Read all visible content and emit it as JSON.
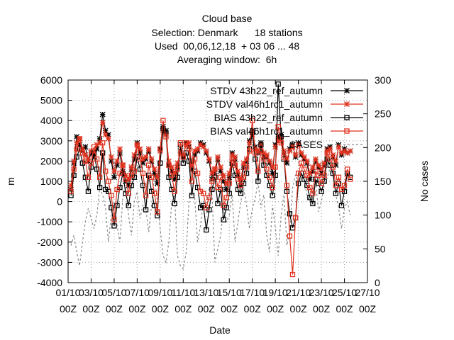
{
  "chart_data": {
    "type": "line",
    "title_lines": [
      "Cloud base",
      "Selection: Denmark      18 stations",
      "Used  00,06,12,18  + 03 06 ... 48",
      "Averaging window:  6h"
    ],
    "xlabel": "Date",
    "ylabel": "m",
    "y2label": "No cases",
    "ylim": [
      -4000,
      6000
    ],
    "y2lim": [
      0,
      300
    ],
    "xlim": [
      0,
      26
    ],
    "grid": true,
    "legend_placement": "top-right",
    "y_ticks": [
      "-4000",
      "-3000",
      "-2000",
      "-1000",
      "0",
      "1000",
      "2000",
      "3000",
      "4000",
      "5000",
      "6000"
    ],
    "y2_ticks": [
      "0",
      "50",
      "100",
      "150",
      "200",
      "250",
      "300"
    ],
    "x_ticks": [
      {
        "day": 0,
        "top": "01/10",
        "bottom": "00Z"
      },
      {
        "day": 2,
        "top": "03/10",
        "bottom": "00Z"
      },
      {
        "day": 4,
        "top": "05/10",
        "bottom": "00Z"
      },
      {
        "day": 6,
        "top": "07/10",
        "bottom": "00Z"
      },
      {
        "day": 8,
        "top": "09/10",
        "bottom": "00Z"
      },
      {
        "day": 10,
        "top": "11/10",
        "bottom": "00Z"
      },
      {
        "day": 12,
        "top": "13/10",
        "bottom": "00Z"
      },
      {
        "day": 14,
        "top": "15/10",
        "bottom": "00Z"
      },
      {
        "day": 16,
        "top": "17/10",
        "bottom": "00Z"
      },
      {
        "day": 18,
        "top": "19/10",
        "bottom": "00Z"
      },
      {
        "day": 20,
        "top": "21/10",
        "bottom": "00Z"
      },
      {
        "day": 22,
        "top": "23/10",
        "bottom": "00Z"
      },
      {
        "day": 24,
        "top": "25/10",
        "bottom": "00Z"
      },
      {
        "day": 26,
        "top": "27/10",
        "bottom": "00Z"
      }
    ],
    "series": [
      {
        "name": "STDV 43h22_ref_autumn",
        "color": "#000000",
        "marker": "star",
        "axis": "y",
        "x": [
          0.25,
          0.5,
          0.75,
          1,
          1.25,
          1.5,
          1.75,
          2,
          2.25,
          2.5,
          2.75,
          3,
          3.25,
          3.5,
          3.75,
          4,
          4.25,
          4.5,
          4.75,
          5,
          5.25,
          5.5,
          5.75,
          6,
          6.25,
          6.5,
          6.75,
          7,
          7.25,
          7.5,
          7.75,
          8,
          8.25,
          8.5,
          8.75,
          9,
          9.25,
          9.5,
          9.75,
          10,
          10.25,
          10.5,
          10.75,
          11,
          11.25,
          11.5,
          11.75,
          12,
          12.25,
          12.5,
          12.75,
          13,
          13.25,
          13.5,
          13.75,
          14,
          14.25,
          14.5,
          14.75,
          15,
          15.25,
          15.5,
          15.75,
          16,
          16.25,
          16.5,
          16.75,
          17,
          17.25,
          17.5,
          17.75,
          18,
          18.25,
          18.5,
          18.75,
          19,
          19.25,
          19.5,
          19.75,
          20,
          20.25,
          20.5,
          20.75,
          21,
          21.25,
          21.5,
          21.75,
          22,
          22.25,
          22.5,
          22.75,
          23,
          23.25,
          23.5,
          23.75,
          24,
          24.25,
          24.5
        ],
        "values": [
          600,
          1900,
          3200,
          2800,
          2500,
          2700,
          2000,
          2400,
          2200,
          2600,
          3100,
          4300,
          3500,
          3300,
          2000,
          1200,
          1800,
          2400,
          1500,
          1000,
          800,
          1600,
          2100,
          2900,
          2400,
          1900,
          2100,
          2500,
          2000,
          1400,
          900,
          2600,
          3700,
          3500,
          1800,
          1500,
          1100,
          1700,
          2500,
          2200,
          2900,
          2700,
          1600,
          2300,
          2500,
          2900,
          2800,
          2400,
          2000,
          1100,
          1400,
          2100,
          1500,
          1000,
          600,
          1200,
          2400,
          2100,
          1300,
          800,
          1700,
          2000,
          3000,
          3500,
          2700,
          2400,
          2900,
          2200,
          2200,
          1900,
          1400,
          2800,
          3200,
          3300,
          2400,
          1900,
          2600,
          2800,
          2200,
          2900,
          2300,
          2100,
          1900,
          1100,
          1500,
          2000,
          1700,
          1400,
          1800,
          2600,
          2700,
          2200,
          1800,
          2800,
          2300,
          2600,
          2400,
          2500
        ]
      },
      {
        "name": "STDV val46h1rc1_autumn",
        "color": "#e0321e",
        "marker": "star",
        "axis": "y",
        "x": [
          0.25,
          0.5,
          0.75,
          1,
          1.25,
          1.5,
          1.75,
          2,
          2.25,
          2.5,
          2.75,
          3,
          3.25,
          3.5,
          3.75,
          4,
          4.25,
          4.5,
          4.75,
          5,
          5.25,
          5.5,
          5.75,
          6,
          6.25,
          6.5,
          6.75,
          7,
          7.25,
          7.5,
          7.75,
          8,
          8.25,
          8.5,
          8.75,
          9,
          9.25,
          9.5,
          9.75,
          10,
          10.25,
          10.5,
          10.75,
          11,
          11.25,
          11.5,
          11.75,
          12,
          12.25,
          12.5,
          12.75,
          13,
          13.25,
          13.5,
          13.75,
          14,
          14.25,
          14.5,
          14.75,
          15,
          15.25,
          15.5,
          15.75,
          16,
          16.25,
          16.5,
          16.75,
          17,
          17.25,
          17.5,
          17.75,
          18,
          18.25,
          18.5,
          18.75,
          19,
          19.25,
          19.5,
          19.75,
          20,
          20.25,
          20.5,
          20.75,
          21,
          21.25,
          21.5,
          21.75,
          22,
          22.25,
          22.5,
          22.75,
          23,
          23.25,
          23.5,
          23.75,
          24,
          24.25,
          24.5
        ],
        "values": [
          800,
          2000,
          2900,
          3100,
          2600,
          2300,
          2100,
          2500,
          2400,
          2800,
          2900,
          3900,
          3300,
          3100,
          2200,
          1500,
          2000,
          2600,
          1800,
          1300,
          1100,
          1700,
          2300,
          2800,
          2600,
          2100,
          2200,
          2600,
          2100,
          1600,
          1200,
          2500,
          3500,
          3300,
          2000,
          1700,
          1400,
          1900,
          2400,
          2300,
          2800,
          2900,
          1800,
          2500,
          2600,
          2800,
          2700,
          2500,
          2100,
          1400,
          1600,
          2200,
          1700,
          1300,
          900,
          1400,
          2300,
          2200,
          1500,
          1100,
          1900,
          2100,
          2900,
          3300,
          2600,
          2500,
          2800,
          2400,
          2300,
          2000,
          1700,
          2700,
          3000,
          3100,
          2500,
          2100,
          2500,
          2700,
          2300,
          2800,
          2400,
          2200,
          2000,
          1400,
          1700,
          2100,
          1800,
          1600,
          1900,
          2500,
          2600,
          2300,
          2000,
          2700,
          2400,
          2500,
          2400,
          2500
        ]
      },
      {
        "name": "BIAS 43h22_ref_autumn",
        "color": "#000000",
        "marker": "square",
        "axis": "y",
        "x": [
          0.25,
          0.5,
          0.75,
          1,
          1.25,
          1.5,
          1.75,
          2,
          2.25,
          2.5,
          2.75,
          3,
          3.25,
          3.5,
          3.75,
          4,
          4.25,
          4.5,
          4.75,
          5,
          5.25,
          5.5,
          5.75,
          6,
          6.25,
          6.5,
          6.75,
          7,
          7.25,
          7.5,
          7.75,
          8,
          8.25,
          8.5,
          8.75,
          9,
          9.25,
          9.5,
          9.75,
          10,
          10.25,
          10.5,
          10.75,
          11,
          11.25,
          11.5,
          11.75,
          12,
          12.25,
          12.5,
          12.75,
          13,
          13.25,
          13.5,
          13.75,
          14,
          14.25,
          14.5,
          14.75,
          15,
          15.25,
          15.5,
          15.75,
          16,
          16.25,
          16.5,
          16.75,
          17,
          17.25,
          17.5,
          17.75,
          18,
          18.25,
          18.5,
          18.75,
          19,
          19.25,
          19.5,
          19.75,
          20,
          20.25,
          20.5,
          20.75,
          21,
          21.25,
          21.5,
          21.75,
          22,
          22.25,
          22.5,
          22.75,
          23,
          23.25,
          23.5,
          23.75,
          24,
          24.25,
          24.5
        ],
        "values": [
          300,
          1300,
          2200,
          2600,
          1900,
          1200,
          500,
          1700,
          2400,
          1600,
          700,
          2400,
          600,
          500,
          -300,
          -1200,
          -200,
          700,
          1400,
          400,
          -200,
          800,
          1200,
          2200,
          1600,
          800,
          -400,
          1300,
          500,
          -200,
          -700,
          1900,
          3600,
          3400,
          1200,
          600,
          -100,
          1200,
          2800,
          1900,
          2400,
          2000,
          300,
          1500,
          700,
          -300,
          -200,
          -1400,
          -400,
          600,
          1200,
          -100,
          600,
          -900,
          -300,
          400,
          1900,
          1300,
          600,
          400,
          900,
          1400,
          2600,
          3400,
          2100,
          1000,
          2800,
          1800,
          1300,
          800,
          300,
          1300,
          5800,
          3200,
          2100,
          500,
          -600,
          -1300,
          -800,
          900,
          1400,
          1100,
          800,
          200,
          -100,
          1100,
          900,
          500,
          1000,
          2100,
          1800,
          1400,
          400,
          900,
          -200,
          500,
          1400,
          1200
        ]
      },
      {
        "name": "BIAS val46h1rc1_autumn",
        "color": "#e0321e",
        "marker": "square",
        "axis": "y",
        "x": [
          0.25,
          0.5,
          0.75,
          1,
          1.25,
          1.5,
          1.75,
          2,
          2.25,
          2.5,
          2.75,
          3,
          3.25,
          3.5,
          3.75,
          4,
          4.25,
          4.5,
          4.75,
          5,
          5.25,
          5.5,
          5.75,
          6,
          6.25,
          6.5,
          6.75,
          7,
          7.25,
          7.5,
          7.75,
          8,
          8.25,
          8.5,
          8.75,
          9,
          9.25,
          9.5,
          9.75,
          10,
          10.25,
          10.5,
          10.75,
          11,
          11.25,
          11.5,
          11.75,
          12,
          12.25,
          12.5,
          12.75,
          13,
          13.25,
          13.5,
          13.75,
          14,
          14.25,
          14.5,
          14.75,
          15,
          15.25,
          15.5,
          15.75,
          16,
          16.25,
          16.5,
          16.75,
          17,
          17.25,
          17.5,
          17.75,
          18,
          18.25,
          18.5,
          18.75,
          19,
          19.25,
          19.5,
          19.75,
          20,
          20.25,
          20.5,
          20.75,
          21,
          21.25,
          21.5,
          21.75,
          22,
          22.25,
          22.5,
          22.75,
          23,
          23.25,
          23.5,
          23.75,
          24,
          24.25,
          24.5
        ],
        "values": [
          500,
          1600,
          2600,
          3100,
          2400,
          2000,
          1200,
          1900,
          2700,
          2100,
          1200,
          2900,
          1500,
          1000,
          300,
          -900,
          600,
          1400,
          1800,
          1100,
          400,
          1300,
          1500,
          2800,
          2100,
          1400,
          300,
          1800,
          1200,
          400,
          -500,
          2600,
          4000,
          3200,
          1800,
          1300,
          500,
          1600,
          2900,
          2200,
          2900,
          2600,
          1000,
          2100,
          1400,
          500,
          400,
          -300,
          200,
          1000,
          1600,
          700,
          1200,
          -200,
          200,
          900,
          2100,
          1800,
          1100,
          800,
          1200,
          1700,
          2500,
          4000,
          2400,
          1500,
          2500,
          2100,
          1600,
          1200,
          700,
          1700,
          3700,
          2900,
          2200,
          800,
          -1700,
          -3600,
          -800,
          1400,
          1900,
          1600,
          1300,
          700,
          400,
          1500,
          1300,
          900,
          1300,
          2400,
          2100,
          1700,
          800,
          1200,
          600,
          800,
          1600,
          1100
        ]
      },
      {
        "name": "CASES",
        "color": "#888888",
        "marker": "none",
        "dashed": true,
        "axis": "y2",
        "x": [
          0.25,
          0.5,
          0.75,
          1,
          1.25,
          1.5,
          1.75,
          2,
          2.25,
          2.5,
          2.75,
          3,
          3.25,
          3.5,
          3.75,
          4,
          4.25,
          4.5,
          4.75,
          5,
          5.25,
          5.5,
          5.75,
          6,
          6.25,
          6.5,
          6.75,
          7,
          7.25,
          7.5,
          7.75,
          8,
          8.25,
          8.5,
          8.75,
          9,
          9.25,
          9.5,
          9.75,
          10,
          10.25,
          10.5,
          10.75,
          11,
          11.25,
          11.5,
          11.75,
          12,
          12.25,
          12.5,
          12.75,
          13,
          13.25,
          13.5,
          13.75,
          14,
          14.25,
          14.5,
          14.75,
          15,
          15.25,
          15.5,
          15.75,
          16,
          16.25,
          16.5,
          16.75,
          17,
          17.25,
          17.5,
          17.75,
          18,
          18.25,
          18.5,
          18.75,
          19,
          19.25,
          19.5,
          19.75,
          20,
          20.25,
          20.5,
          20.75,
          21,
          21.25,
          21.5,
          21.75,
          22,
          22.25,
          22.5,
          22.75,
          23,
          23.25,
          23.5,
          23.75,
          24,
          24.25,
          24.5
        ],
        "values": [
          55,
          70,
          45,
          25,
          60,
          90,
          110,
          95,
          80,
          100,
          140,
          130,
          110,
          60,
          100,
          120,
          85,
          60,
          125,
          140,
          100,
          70,
          120,
          135,
          95,
          115,
          110,
          75,
          115,
          160,
          120,
          80,
          40,
          30,
          60,
          120,
          130,
          40,
          25,
          20,
          45,
          120,
          140,
          125,
          60,
          85,
          120,
          110,
          140,
          130,
          30,
          50,
          70,
          110,
          90,
          100,
          130,
          60,
          90,
          120,
          140,
          115,
          80,
          110,
          125,
          150,
          110,
          130,
          70,
          45,
          115,
          80,
          40,
          100,
          130,
          55,
          75,
          140,
          160,
          145,
          160,
          150,
          130,
          120,
          140,
          150,
          105,
          120,
          145,
          155,
          170,
          160,
          130,
          110,
          80,
          110,
          120,
          100
        ]
      }
    ]
  }
}
